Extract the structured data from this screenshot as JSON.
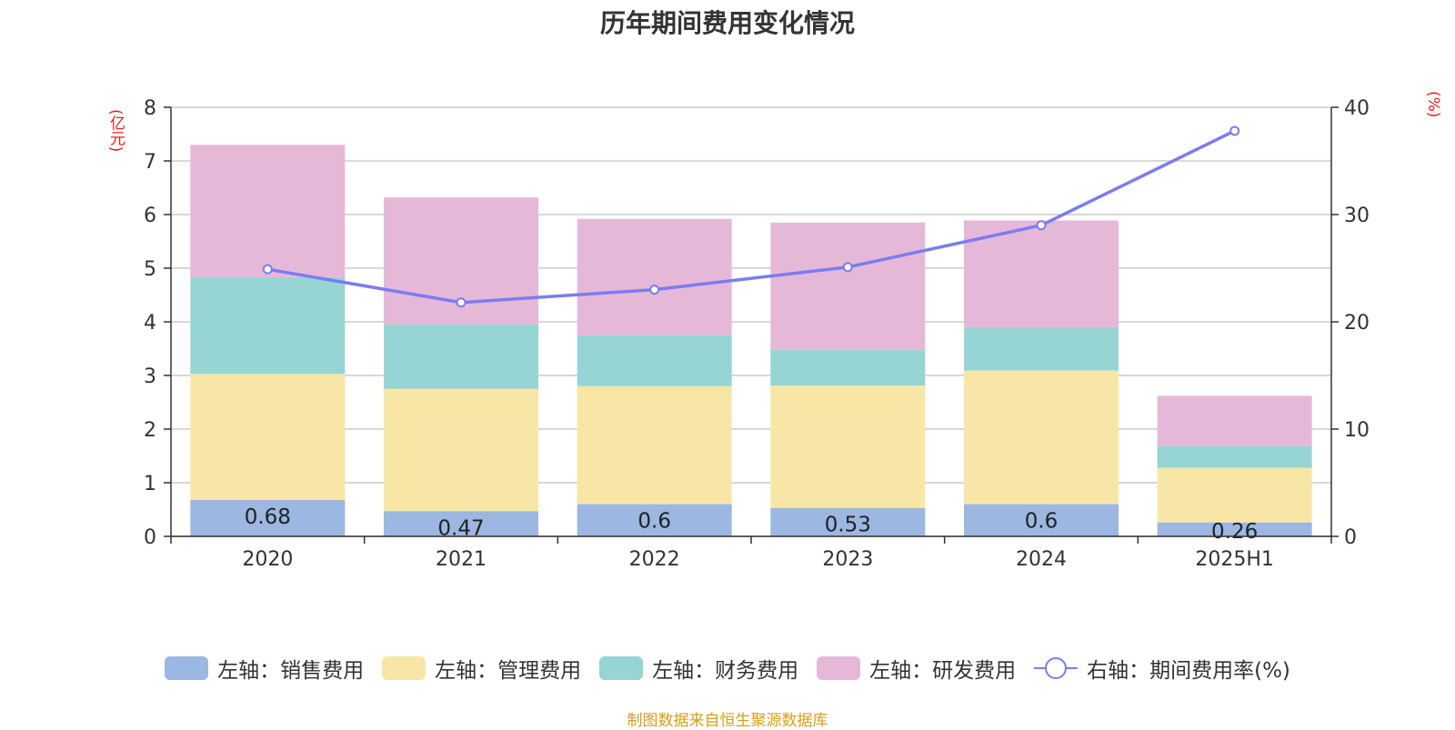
{
  "header": {
    "title": "历年期间费用变化情况"
  },
  "axes": {
    "left_unit": "(亿元)",
    "right_unit": "(%)"
  },
  "legend": {
    "items": [
      {
        "label": "左轴：销售费用",
        "color": "#9bb7e2"
      },
      {
        "label": "左轴：管理费用",
        "color": "#f7e6a6"
      },
      {
        "label": "左轴：财务费用",
        "color": "#97d4d4"
      },
      {
        "label": "左轴：研发费用",
        "color": "#e6b8d8"
      },
      {
        "label": "右轴：期间费用率(%)",
        "color": "#7b7cf0"
      }
    ]
  },
  "footer": {
    "source": "制图数据来自恒生聚源数据库"
  },
  "chart_data": {
    "type": "bar",
    "stacked": true,
    "categories": [
      "2020",
      "2021",
      "2022",
      "2023",
      "2024",
      "2025H1"
    ],
    "series": [
      {
        "name": "左轴：销售费用",
        "axis": "left",
        "type": "bar",
        "color": "#9bb7e2",
        "values": [
          0.68,
          0.47,
          0.6,
          0.53,
          0.6,
          0.26
        ],
        "labels": [
          "0.68",
          "0.47",
          "0.6",
          "0.53",
          "0.6",
          "0.26"
        ]
      },
      {
        "name": "左轴：管理费用",
        "axis": "left",
        "type": "bar",
        "color": "#f7e6a6",
        "values": [
          2.35,
          2.28,
          2.2,
          2.28,
          2.49,
          1.02
        ]
      },
      {
        "name": "左轴：财务费用",
        "axis": "left",
        "type": "bar",
        "color": "#97d4d4",
        "values": [
          1.8,
          1.2,
          0.95,
          0.67,
          0.8,
          0.41
        ]
      },
      {
        "name": "左轴：研发费用",
        "axis": "left",
        "type": "bar",
        "color": "#e6b8d8",
        "values": [
          2.47,
          2.37,
          2.17,
          2.37,
          2.0,
          0.93
        ]
      },
      {
        "name": "右轴：期间费用率(%)",
        "axis": "right",
        "type": "line",
        "color": "#7b7cf0",
        "values": [
          24.9,
          21.8,
          23.0,
          25.1,
          29.0,
          37.8
        ]
      }
    ],
    "y_left": {
      "ylim": [
        0,
        8
      ],
      "ticks": [
        0,
        1,
        2,
        3,
        4,
        5,
        6,
        7,
        8
      ]
    },
    "y_right": {
      "ylim": [
        0,
        40
      ],
      "ticks": [
        0,
        10,
        20,
        30,
        40
      ]
    },
    "grid": true,
    "legend_position": "bottom"
  }
}
